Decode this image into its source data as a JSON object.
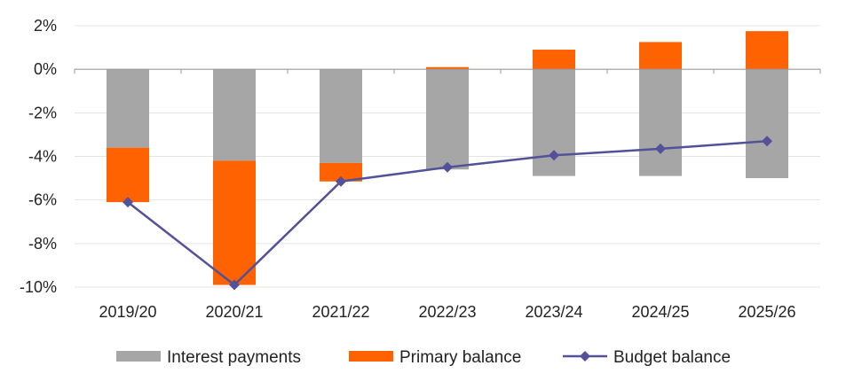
{
  "chart_data": {
    "type": "bar",
    "categories": [
      "2019/20",
      "2020/21",
      "2021/22",
      "2022/23",
      "2023/24",
      "2024/25",
      "2025/26"
    ],
    "series": [
      {
        "name": "Interest payments",
        "type": "stacked-bar",
        "color": "#a6a6a6",
        "values": [
          -3.6,
          -4.2,
          -4.3,
          -4.6,
          -4.9,
          -4.9,
          -5.0
        ]
      },
      {
        "name": "Primary balance",
        "type": "stacked-bar",
        "color": "#ff6200",
        "values": [
          -2.5,
          -5.7,
          -0.85,
          0.1,
          0.9,
          1.25,
          1.75
        ]
      },
      {
        "name": "Budget balance",
        "type": "line",
        "marker": "diamond",
        "color": "#525199",
        "values": [
          -6.1,
          -9.9,
          -5.15,
          -4.5,
          -3.95,
          -3.65,
          -3.3
        ]
      }
    ],
    "yticks": [
      "2%",
      "0%",
      "-2%",
      "-4%",
      "-6%",
      "-8%",
      "-10%"
    ],
    "ytick_values": [
      2,
      0,
      -2,
      -4,
      -6,
      -8,
      -10
    ],
    "ylim": [
      -10,
      2
    ],
    "grid": true,
    "legend_position": "bottom"
  }
}
